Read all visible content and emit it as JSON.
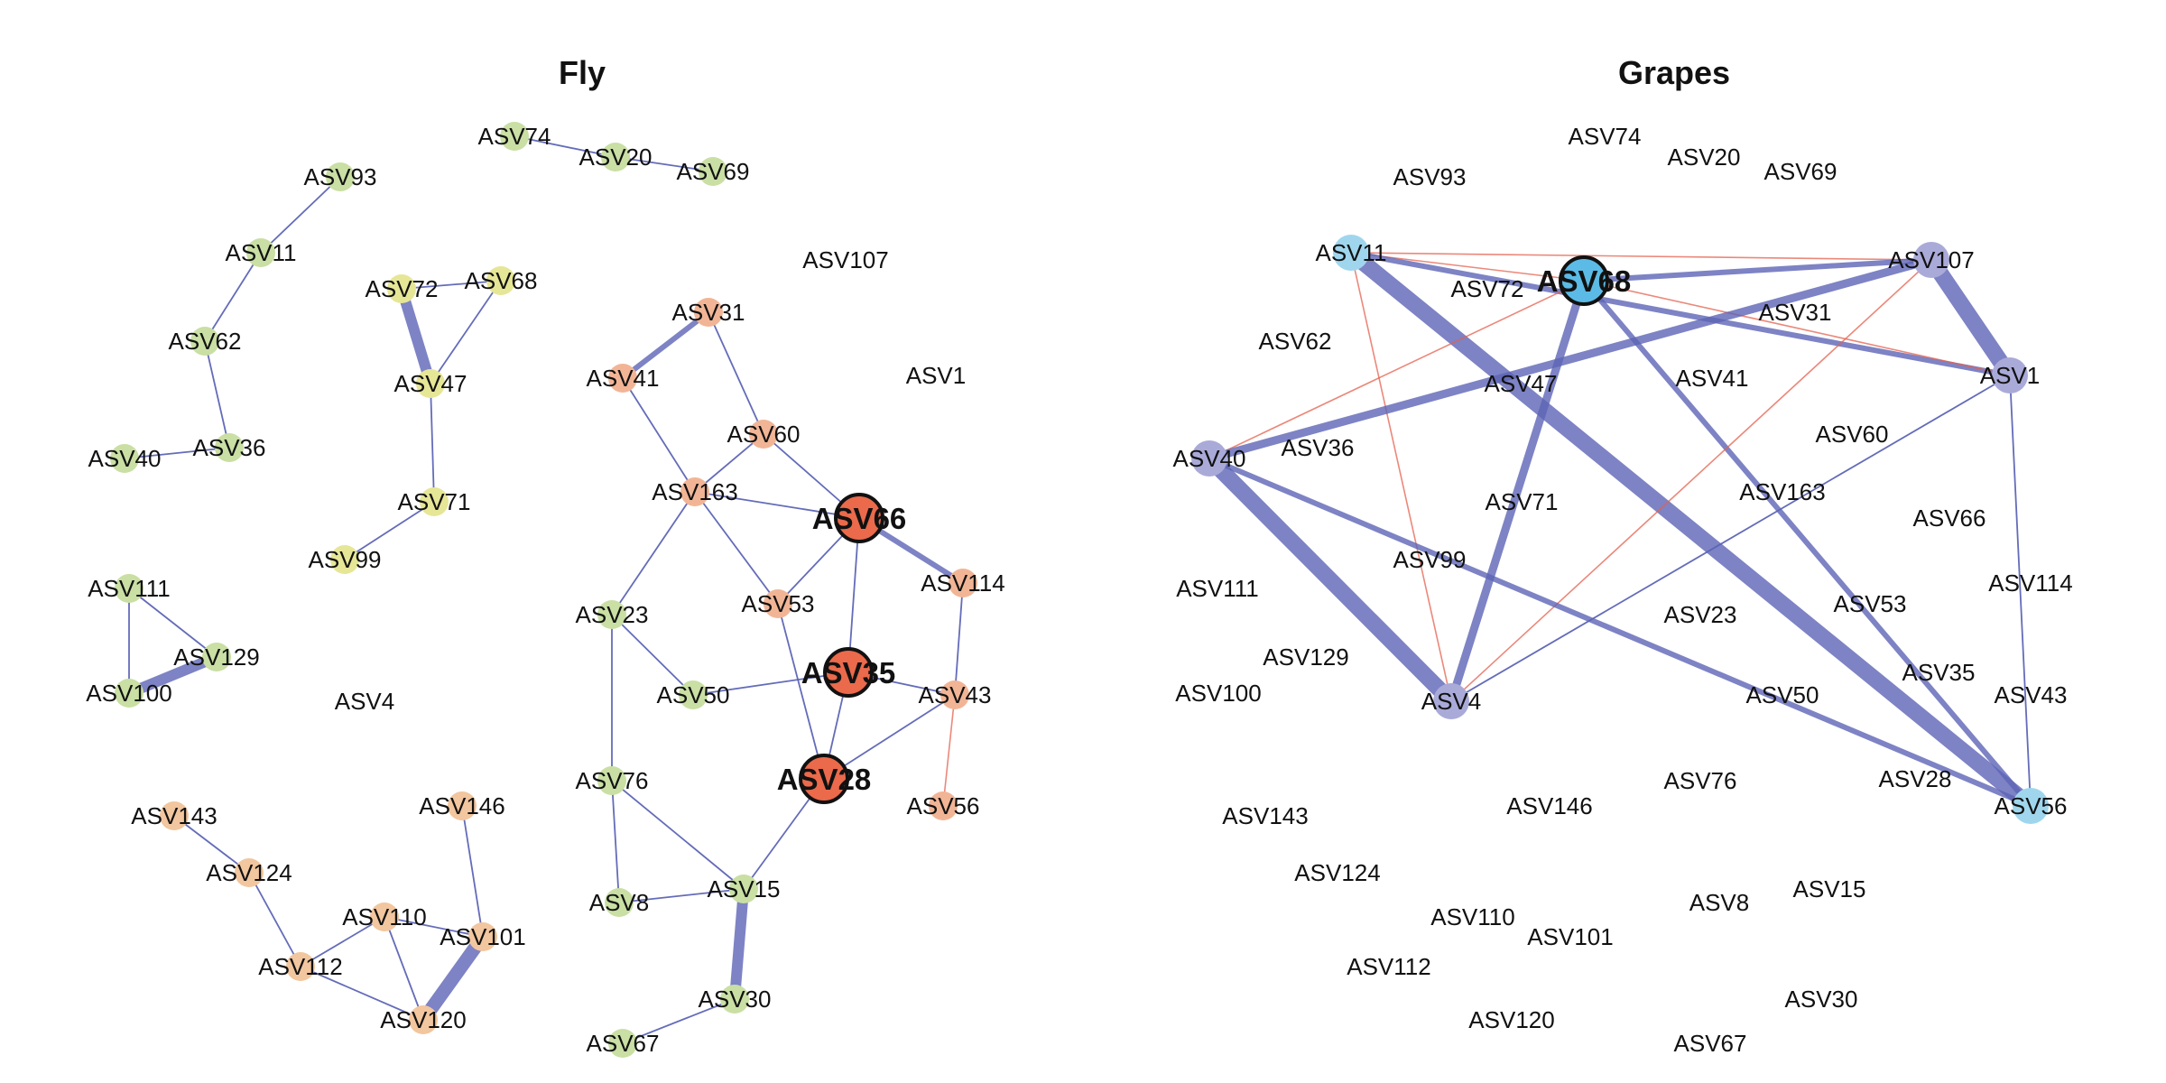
{
  "panels": [
    {
      "title": "Fly",
      "colors": {
        "g": "#c9dfa4",
        "y": "#e6e697",
        "s": "#f1b596",
        "o": "#f2c69e",
        "r": "#ea6a4b"
      },
      "nodes": [
        {
          "id": "ASV74",
          "c": "g"
        },
        {
          "id": "ASV20",
          "c": "g"
        },
        {
          "id": "ASV69",
          "c": "g"
        },
        {
          "id": "ASV93",
          "c": "g"
        },
        {
          "id": "ASV11",
          "c": "g"
        },
        {
          "id": "ASV62",
          "c": "g"
        },
        {
          "id": "ASV40",
          "c": "g"
        },
        {
          "id": "ASV36",
          "c": "g"
        },
        {
          "id": "ASV72",
          "c": "y"
        },
        {
          "id": "ASV68",
          "c": "y"
        },
        {
          "id": "ASV47",
          "c": "y"
        },
        {
          "id": "ASV71",
          "c": "y"
        },
        {
          "id": "ASV99",
          "c": "y"
        },
        {
          "id": "ASV107"
        },
        {
          "id": "ASV1"
        },
        {
          "id": "ASV31",
          "c": "s"
        },
        {
          "id": "ASV41",
          "c": "s"
        },
        {
          "id": "ASV60",
          "c": "s"
        },
        {
          "id": "ASV163",
          "c": "s"
        },
        {
          "id": "ASV66",
          "c": "r",
          "hub": true
        },
        {
          "id": "ASV114",
          "c": "s"
        },
        {
          "id": "ASV53",
          "c": "s"
        },
        {
          "id": "ASV23",
          "c": "g"
        },
        {
          "id": "ASV50",
          "c": "g"
        },
        {
          "id": "ASV35",
          "c": "r",
          "hub": true
        },
        {
          "id": "ASV43",
          "c": "s"
        },
        {
          "id": "ASV28",
          "c": "r",
          "hub": true
        },
        {
          "id": "ASV56",
          "c": "s"
        },
        {
          "id": "ASV76",
          "c": "g"
        },
        {
          "id": "ASV8",
          "c": "g"
        },
        {
          "id": "ASV15",
          "c": "g"
        },
        {
          "id": "ASV30",
          "c": "g"
        },
        {
          "id": "ASV67",
          "c": "g"
        },
        {
          "id": "ASV111",
          "c": "g"
        },
        {
          "id": "ASV129",
          "c": "g"
        },
        {
          "id": "ASV100",
          "c": "g"
        },
        {
          "id": "ASV4"
        },
        {
          "id": "ASV143",
          "c": "o"
        },
        {
          "id": "ASV146",
          "c": "o"
        },
        {
          "id": "ASV124",
          "c": "o"
        },
        {
          "id": "ASV110",
          "c": "o"
        },
        {
          "id": "ASV101",
          "c": "o"
        },
        {
          "id": "ASV112",
          "c": "o"
        },
        {
          "id": "ASV120",
          "c": "o"
        }
      ],
      "edges": [
        [
          "ASV74",
          "ASV20",
          1,
          "pos"
        ],
        [
          "ASV20",
          "ASV69",
          1,
          "pos"
        ],
        [
          "ASV93",
          "ASV11",
          1,
          "pos"
        ],
        [
          "ASV11",
          "ASV62",
          1,
          "pos"
        ],
        [
          "ASV62",
          "ASV36",
          1,
          "pos"
        ],
        [
          "ASV36",
          "ASV40",
          1,
          "pos"
        ],
        [
          "ASV72",
          "ASV47",
          4,
          "pos"
        ],
        [
          "ASV72",
          "ASV68",
          1,
          "pos"
        ],
        [
          "ASV68",
          "ASV47",
          1,
          "pos"
        ],
        [
          "ASV47",
          "ASV71",
          1,
          "pos"
        ],
        [
          "ASV71",
          "ASV99",
          1,
          "pos"
        ],
        [
          "ASV31",
          "ASV41",
          2,
          "pos"
        ],
        [
          "ASV31",
          "ASV60",
          1,
          "pos"
        ],
        [
          "ASV41",
          "ASV163",
          1,
          "pos"
        ],
        [
          "ASV60",
          "ASV163",
          1,
          "pos"
        ],
        [
          "ASV60",
          "ASV66",
          1,
          "pos"
        ],
        [
          "ASV163",
          "ASV66",
          1,
          "pos"
        ],
        [
          "ASV163",
          "ASV53",
          1,
          "pos"
        ],
        [
          "ASV163",
          "ASV23",
          1,
          "pos"
        ],
        [
          "ASV66",
          "ASV114",
          2,
          "pos"
        ],
        [
          "ASV66",
          "ASV53",
          1,
          "pos"
        ],
        [
          "ASV66",
          "ASV35",
          1,
          "pos"
        ],
        [
          "ASV53",
          "ASV28",
          1,
          "pos"
        ],
        [
          "ASV35",
          "ASV50",
          1,
          "pos"
        ],
        [
          "ASV35",
          "ASV43",
          1,
          "pos"
        ],
        [
          "ASV35",
          "ASV28",
          1,
          "pos"
        ],
        [
          "ASV114",
          "ASV43",
          1,
          "pos"
        ],
        [
          "ASV43",
          "ASV56",
          1,
          "neg"
        ],
        [
          "ASV43",
          "ASV28",
          1,
          "pos"
        ],
        [
          "ASV28",
          "ASV15",
          1,
          "pos"
        ],
        [
          "ASV23",
          "ASV50",
          1,
          "pos"
        ],
        [
          "ASV23",
          "ASV76",
          1,
          "pos"
        ],
        [
          "ASV76",
          "ASV8",
          1,
          "pos"
        ],
        [
          "ASV76",
          "ASV15",
          1,
          "pos"
        ],
        [
          "ASV8",
          "ASV15",
          1,
          "pos"
        ],
        [
          "ASV15",
          "ASV30",
          4,
          "pos"
        ],
        [
          "ASV30",
          "ASV67",
          1,
          "pos"
        ],
        [
          "ASV111",
          "ASV100",
          1,
          "pos"
        ],
        [
          "ASV111",
          "ASV129",
          1,
          "pos"
        ],
        [
          "ASV129",
          "ASV100",
          4,
          "pos"
        ],
        [
          "ASV143",
          "ASV124",
          1,
          "pos"
        ],
        [
          "ASV124",
          "ASV112",
          1,
          "pos"
        ],
        [
          "ASV112",
          "ASV110",
          1,
          "pos"
        ],
        [
          "ASV112",
          "ASV120",
          1,
          "pos"
        ],
        [
          "ASV110",
          "ASV120",
          1,
          "pos"
        ],
        [
          "ASV110",
          "ASV101",
          1,
          "pos"
        ],
        [
          "ASV146",
          "ASV101",
          1,
          "pos"
        ],
        [
          "ASV101",
          "ASV120",
          5,
          "pos"
        ]
      ]
    },
    {
      "title": "Grapes",
      "colors": {
        "b": "#aaaad9",
        "c": "#9fd6ee",
        "h": "#5bbbe6"
      },
      "nodes": [
        {
          "id": "ASV74"
        },
        {
          "id": "ASV20"
        },
        {
          "id": "ASV69"
        },
        {
          "id": "ASV93"
        },
        {
          "id": "ASV11",
          "c": "c"
        },
        {
          "id": "ASV68",
          "c": "h",
          "hub": true
        },
        {
          "id": "ASV72"
        },
        {
          "id": "ASV107",
          "c": "b"
        },
        {
          "id": "ASV31"
        },
        {
          "id": "ASV62"
        },
        {
          "id": "ASV1",
          "c": "b"
        },
        {
          "id": "ASV47"
        },
        {
          "id": "ASV41"
        },
        {
          "id": "ASV40",
          "c": "b"
        },
        {
          "id": "ASV36"
        },
        {
          "id": "ASV60"
        },
        {
          "id": "ASV71"
        },
        {
          "id": "ASV163"
        },
        {
          "id": "ASV66"
        },
        {
          "id": "ASV99"
        },
        {
          "id": "ASV114"
        },
        {
          "id": "ASV111"
        },
        {
          "id": "ASV53"
        },
        {
          "id": "ASV23"
        },
        {
          "id": "ASV129"
        },
        {
          "id": "ASV35"
        },
        {
          "id": "ASV100"
        },
        {
          "id": "ASV4",
          "c": "b"
        },
        {
          "id": "ASV50"
        },
        {
          "id": "ASV43"
        },
        {
          "id": "ASV28"
        },
        {
          "id": "ASV76"
        },
        {
          "id": "ASV56",
          "c": "c"
        },
        {
          "id": "ASV143"
        },
        {
          "id": "ASV146"
        },
        {
          "id": "ASV124"
        },
        {
          "id": "ASV15"
        },
        {
          "id": "ASV8"
        },
        {
          "id": "ASV110"
        },
        {
          "id": "ASV101"
        },
        {
          "id": "ASV112"
        },
        {
          "id": "ASV30"
        },
        {
          "id": "ASV120"
        },
        {
          "id": "ASV67"
        }
      ],
      "edges": [
        [
          "ASV11",
          "ASV68",
          1,
          "neg"
        ],
        [
          "ASV11",
          "ASV107",
          1,
          "neg"
        ],
        [
          "ASV11",
          "ASV1",
          2,
          "pos"
        ],
        [
          "ASV11",
          "ASV56",
          6,
          "pos"
        ],
        [
          "ASV11",
          "ASV4",
          1,
          "neg"
        ],
        [
          "ASV68",
          "ASV107",
          2,
          "pos"
        ],
        [
          "ASV68",
          "ASV1",
          1,
          "neg"
        ],
        [
          "ASV68",
          "ASV40",
          1,
          "neg"
        ],
        [
          "ASV68",
          "ASV4",
          3,
          "pos"
        ],
        [
          "ASV68",
          "ASV56",
          2,
          "pos"
        ],
        [
          "ASV107",
          "ASV1",
          6,
          "pos"
        ],
        [
          "ASV107",
          "ASV40",
          3,
          "pos"
        ],
        [
          "ASV107",
          "ASV4",
          1,
          "neg"
        ],
        [
          "ASV1",
          "ASV4",
          1,
          "pos"
        ],
        [
          "ASV1",
          "ASV56",
          1,
          "pos"
        ],
        [
          "ASV40",
          "ASV4",
          6,
          "pos"
        ],
        [
          "ASV40",
          "ASV56",
          2,
          "pos"
        ]
      ]
    }
  ]
}
